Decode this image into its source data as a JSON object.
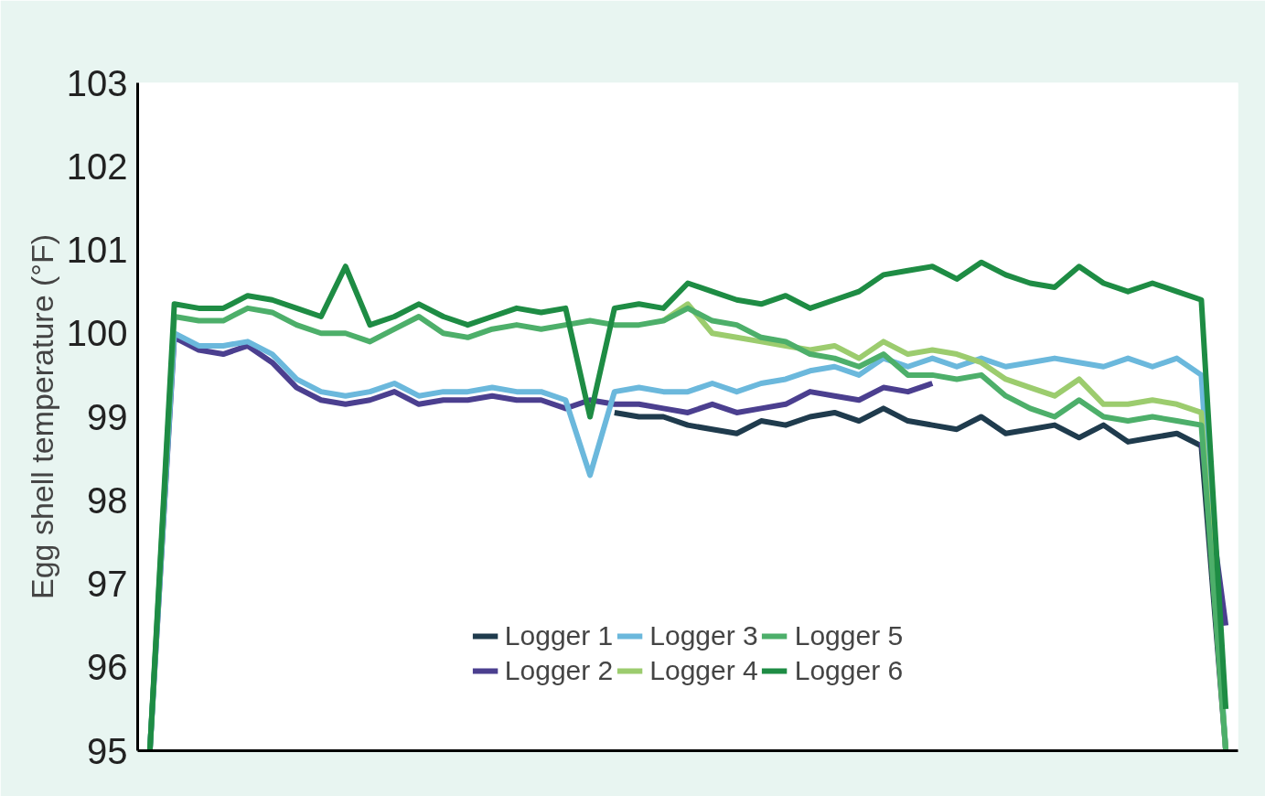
{
  "chart_data": {
    "type": "line",
    "ylabel": "Egg shell temperature (°F)",
    "categories": [
      null,
      null,
      null,
      null,
      null,
      null,
      null,
      null,
      null,
      null,
      null,
      null,
      null,
      null,
      null,
      null,
      null,
      null,
      null,
      null,
      null,
      null,
      null,
      null,
      null,
      null,
      null,
      null,
      null,
      null,
      null,
      null,
      null,
      null,
      null,
      null,
      null,
      null,
      null,
      null,
      null,
      null,
      null,
      null,
      null
    ],
    "series": [
      {
        "name": "Logger 1",
        "color": "#1f3b4d",
        "values": [
          null,
          null,
          null,
          null,
          null,
          null,
          null,
          null,
          null,
          null,
          null,
          null,
          null,
          null,
          null,
          null,
          null,
          null,
          null,
          99.05,
          99.0,
          99.0,
          98.9,
          98.85,
          98.8,
          98.95,
          98.9,
          99.0,
          99.05,
          98.95,
          99.1,
          98.95,
          98.9,
          98.85,
          99.0,
          98.8,
          98.85,
          98.9,
          98.75,
          98.9,
          98.7,
          98.75,
          98.8,
          98.65,
          95
        ]
      },
      {
        "name": "Logger 2",
        "color": "#4b3f8f",
        "values": [
          95,
          99.95,
          99.8,
          99.75,
          99.85,
          99.65,
          99.35,
          99.2,
          99.15,
          99.2,
          99.3,
          99.15,
          99.2,
          99.2,
          99.25,
          99.2,
          99.2,
          99.1,
          99.2,
          99.15,
          99.15,
          99.1,
          99.05,
          99.15,
          99.05,
          99.1,
          99.15,
          99.3,
          99.25,
          99.2,
          99.35,
          99.3,
          99.4,
          null,
          null,
          null,
          null,
          null,
          null,
          null,
          null,
          null,
          null,
          98.7,
          96.5
        ]
      },
      {
        "name": "Logger 3",
        "color": "#6bb8dc",
        "values": [
          95,
          100.0,
          99.85,
          99.85,
          99.9,
          99.75,
          99.45,
          99.3,
          99.25,
          99.3,
          99.4,
          99.25,
          99.3,
          99.3,
          99.35,
          99.3,
          99.3,
          99.2,
          98.3,
          99.3,
          99.35,
          99.3,
          99.3,
          99.4,
          99.3,
          99.4,
          99.45,
          99.55,
          99.6,
          99.5,
          99.7,
          99.6,
          99.7,
          99.6,
          99.7,
          99.6,
          99.65,
          99.7,
          99.65,
          99.6,
          99.7,
          99.6,
          99.7,
          99.5,
          95
        ]
      },
      {
        "name": "Logger 4",
        "color": "#9ccc6e",
        "values": [
          null,
          null,
          null,
          null,
          null,
          null,
          null,
          null,
          null,
          null,
          null,
          null,
          null,
          null,
          null,
          null,
          null,
          null,
          null,
          null,
          null,
          100.15,
          100.35,
          100.0,
          99.95,
          99.9,
          99.85,
          99.8,
          99.85,
          99.7,
          99.9,
          99.75,
          99.8,
          99.75,
          99.65,
          99.45,
          99.35,
          99.25,
          99.45,
          99.15,
          99.15,
          99.2,
          99.15,
          99.05,
          95
        ]
      },
      {
        "name": "Logger 5",
        "color": "#4daf6a",
        "values": [
          95,
          100.2,
          100.15,
          100.15,
          100.3,
          100.25,
          100.1,
          100.0,
          100.0,
          99.9,
          100.05,
          100.2,
          100.0,
          99.95,
          100.05,
          100.1,
          100.05,
          100.1,
          100.15,
          100.1,
          100.1,
          100.15,
          100.3,
          100.15,
          100.1,
          99.95,
          99.9,
          99.75,
          99.7,
          99.6,
          99.75,
          99.5,
          99.5,
          99.45,
          99.5,
          99.25,
          99.1,
          99.0,
          99.2,
          99.0,
          98.95,
          99.0,
          98.95,
          98.9,
          95
        ]
      },
      {
        "name": "Logger 6",
        "color": "#1e8c44",
        "values": [
          95,
          100.35,
          100.3,
          100.3,
          100.45,
          100.4,
          100.3,
          100.2,
          100.8,
          100.1,
          100.2,
          100.35,
          100.2,
          100.1,
          100.2,
          100.3,
          100.25,
          100.3,
          99.0,
          100.3,
          100.35,
          100.3,
          100.6,
          100.5,
          100.4,
          100.35,
          100.45,
          100.3,
          100.4,
          100.5,
          100.7,
          100.75,
          100.8,
          100.65,
          100.85,
          100.7,
          100.6,
          100.55,
          100.8,
          100.6,
          100.5,
          100.6,
          100.5,
          100.4,
          95.5
        ]
      }
    ],
    "ylim": [
      95,
      103
    ],
    "yticks": [
      95,
      96,
      97,
      98,
      99,
      100,
      101,
      102,
      103
    ],
    "grid": false,
    "legend": "bottom",
    "tick_labels": "y",
    "marker": "none",
    "line_style": "solid"
  }
}
